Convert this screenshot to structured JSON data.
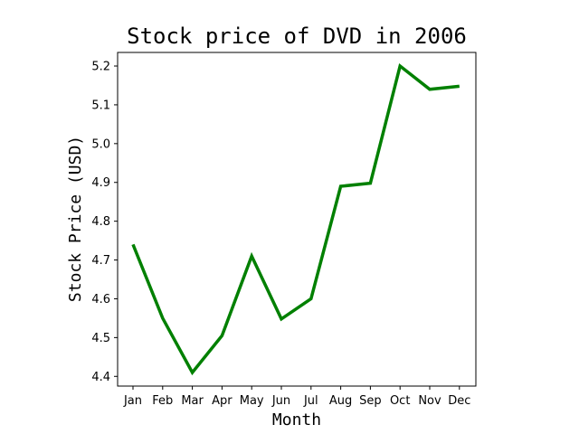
{
  "chart_data": {
    "type": "line",
    "title": "Stock price of DVD in 2006",
    "xlabel": "Month",
    "ylabel": "Stock Price (USD)",
    "categories": [
      "Jan",
      "Feb",
      "Mar",
      "Apr",
      "May",
      "Jun",
      "Jul",
      "Aug",
      "Sep",
      "Oct",
      "Nov",
      "Dec"
    ],
    "series": [
      {
        "values": [
          4.74,
          4.55,
          4.41,
          4.505,
          4.71,
          4.548,
          4.6,
          4.89,
          4.898,
          5.2,
          5.14,
          5.148
        ],
        "color": "#008000"
      }
    ],
    "ylim": [
      4.375,
      5.235
    ],
    "yticks": [
      4.4,
      4.5,
      4.6,
      4.7,
      4.8,
      4.9,
      5.0,
      5.1,
      5.2
    ],
    "ytick_labels": [
      "4.4",
      "4.5",
      "4.6",
      "4.7",
      "4.8",
      "4.9",
      "5.0",
      "5.1",
      "5.2"
    ],
    "grid": false,
    "legend": "none"
  }
}
